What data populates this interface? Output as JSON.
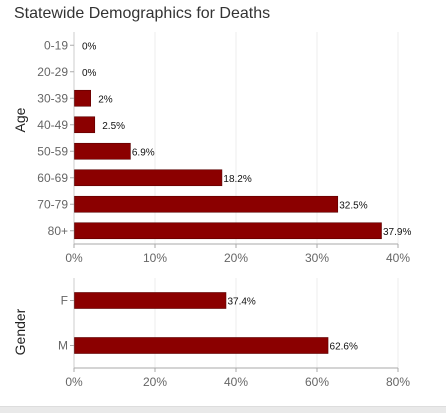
{
  "title": "Statewide Demographics for Deaths",
  "bar_color": "#8b0000",
  "chart_data": [
    {
      "type": "bar",
      "orientation": "horizontal",
      "ylabel": "Age",
      "categories": [
        "0-19",
        "20-29",
        "30-39",
        "40-49",
        "50-59",
        "60-69",
        "70-79",
        "80+"
      ],
      "values": [
        0,
        0,
        2,
        2.5,
        6.9,
        18.2,
        32.5,
        37.9
      ],
      "value_labels": [
        "0%",
        "0%",
        "2%",
        "2.5%",
        "6.9%",
        "18.2%",
        "32.5%",
        "37.9%"
      ],
      "xlim": [
        0,
        40
      ],
      "xticks": [
        "0%",
        "10%",
        "20%",
        "30%",
        "40%"
      ],
      "grid": true
    },
    {
      "type": "bar",
      "orientation": "horizontal",
      "ylabel": "Gender",
      "categories": [
        "F",
        "M"
      ],
      "values": [
        37.4,
        62.6
      ],
      "value_labels": [
        "37.4%",
        "62.6%"
      ],
      "xlim": [
        0,
        80
      ],
      "xticks": [
        "0%",
        "20%",
        "40%",
        "60%",
        "80%"
      ],
      "grid": true
    }
  ]
}
